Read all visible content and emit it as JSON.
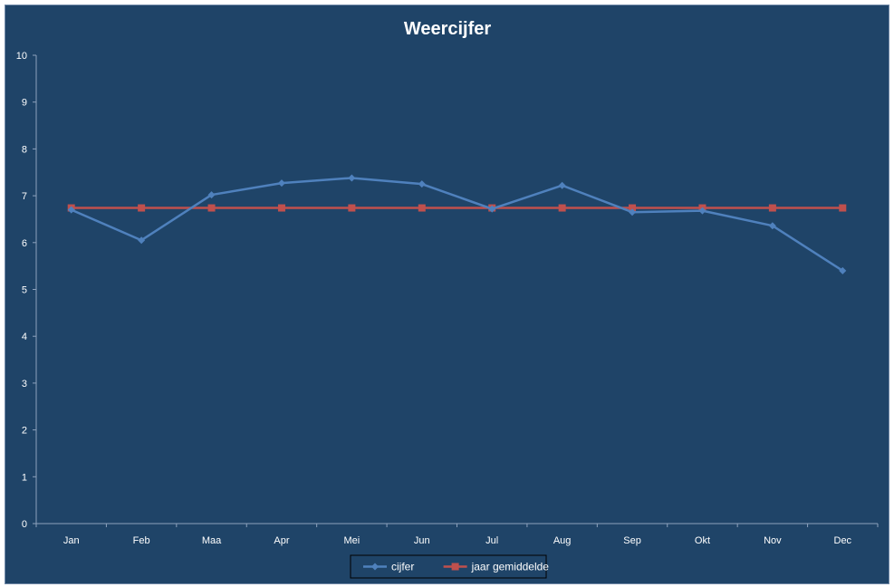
{
  "chart_data": {
    "type": "line",
    "title": "Weercijfer",
    "categories": [
      "Jan",
      "Feb",
      "Maa",
      "Apr",
      "Mei",
      "Jun",
      "Jul",
      "Aug",
      "Sep",
      "Okt",
      "Nov",
      "Dec"
    ],
    "ylim": [
      0,
      10
    ],
    "yticks": [
      "0",
      "1",
      "2",
      "3",
      "4",
      "5",
      "6",
      "7",
      "8",
      "9",
      "10"
    ],
    "grid": false,
    "legend_position": "bottom",
    "series": [
      {
        "name": "cijfer",
        "color": "#4f81bd",
        "marker": "diamond",
        "values": [
          6.7,
          6.05,
          7.02,
          7.27,
          7.38,
          7.25,
          6.72,
          7.22,
          6.65,
          6.68,
          6.36,
          5.4
        ]
      },
      {
        "name": "jaar gemiddelde",
        "color": "#c0504d",
        "marker": "square",
        "values": [
          6.74,
          6.74,
          6.74,
          6.74,
          6.74,
          6.74,
          6.74,
          6.74,
          6.74,
          6.74,
          6.74,
          6.74
        ]
      }
    ]
  },
  "colors": {
    "background": "#1f4468",
    "axis": "#8ea2bd",
    "text": "#ffffff"
  }
}
